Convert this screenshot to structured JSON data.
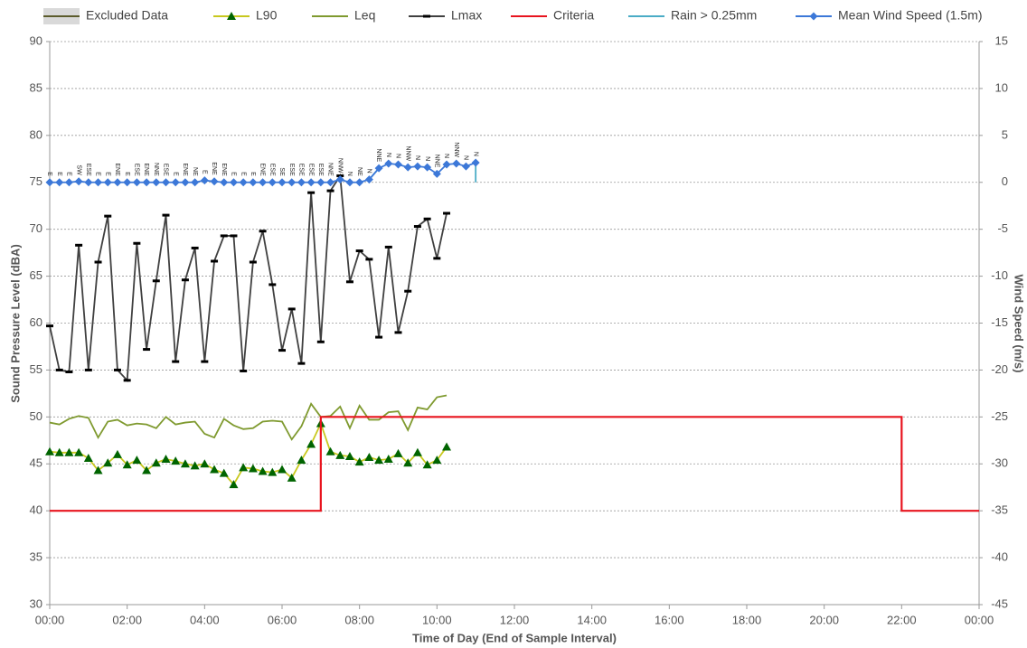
{
  "chart_data": {
    "type": "line",
    "y_title": "Sound Pressure Level (dBA)",
    "y2_title": "Wind Speed (m/s)",
    "x_title": "Time of Day (End of Sample Interval)",
    "xlim": [
      0,
      24
    ],
    "xticks": [
      {
        "value": 0,
        "label": "00:00"
      },
      {
        "value": 2,
        "label": "02:00"
      },
      {
        "value": 4,
        "label": "04:00"
      },
      {
        "value": 6,
        "label": "06:00"
      },
      {
        "value": 8,
        "label": "08:00"
      },
      {
        "value": 10,
        "label": "10:00"
      },
      {
        "value": 12,
        "label": "12:00"
      },
      {
        "value": 14,
        "label": "14:00"
      },
      {
        "value": 16,
        "label": "16:00"
      },
      {
        "value": 18,
        "label": "18:00"
      },
      {
        "value": 20,
        "label": "20:00"
      },
      {
        "value": 22,
        "label": "22:00"
      },
      {
        "value": 24,
        "label": "00:00"
      }
    ],
    "ylim": [
      30,
      90
    ],
    "yticks": [
      30,
      35,
      40,
      45,
      50,
      55,
      60,
      65,
      70,
      75,
      80,
      85,
      90
    ],
    "y2lim": [
      -45,
      15
    ],
    "y2ticks": [
      -45,
      -40,
      -35,
      -30,
      -25,
      -20,
      -15,
      -10,
      -5,
      0,
      5,
      10,
      15
    ],
    "grid": true,
    "series": [
      {
        "name": "Excluded Data",
        "color": "#5b5b2b",
        "marker": "box",
        "x": [],
        "values": []
      },
      {
        "name": "L90",
        "color": "#c8c81e",
        "marker": "triangle",
        "marker_color": "#006400",
        "x": [
          0,
          0.25,
          0.5,
          0.75,
          1,
          1.25,
          1.5,
          1.75,
          2,
          2.25,
          2.5,
          2.75,
          3,
          3.25,
          3.5,
          3.75,
          4,
          4.25,
          4.5,
          4.75,
          5,
          5.25,
          5.5,
          5.75,
          6,
          6.25,
          6.5,
          6.75,
          7,
          7.25,
          7.5,
          7.75,
          8,
          8.25,
          8.5,
          8.75,
          9,
          9.25,
          9.5,
          9.75,
          10,
          10.25
        ],
        "values": [
          46.3,
          46.2,
          46.2,
          46.2,
          45.6,
          44.3,
          45.1,
          46.0,
          44.9,
          45.4,
          44.3,
          45.1,
          45.5,
          45.3,
          45.0,
          44.8,
          45.0,
          44.4,
          44.0,
          42.8,
          44.6,
          44.5,
          44.2,
          44.1,
          44.4,
          43.5,
          45.4,
          47.1,
          49.3,
          46.3,
          45.9,
          45.8,
          45.2,
          45.7,
          45.4,
          45.5,
          46.1,
          45.1,
          46.2,
          44.9,
          45.4,
          46.8
        ]
      },
      {
        "name": "Leq",
        "color": "#7f9a2f",
        "marker": "none",
        "x": [
          0,
          0.25,
          0.5,
          0.75,
          1,
          1.25,
          1.5,
          1.75,
          2,
          2.25,
          2.5,
          2.75,
          3,
          3.25,
          3.5,
          3.75,
          4,
          4.25,
          4.5,
          4.75,
          5,
          5.25,
          5.5,
          5.75,
          6,
          6.25,
          6.5,
          6.75,
          7,
          7.25,
          7.5,
          7.75,
          8,
          8.25,
          8.5,
          8.75,
          9,
          9.25,
          9.5,
          9.75,
          10,
          10.25
        ],
        "values": [
          49.4,
          49.2,
          49.8,
          50.1,
          49.9,
          47.8,
          49.5,
          49.7,
          49.1,
          49.3,
          49.2,
          48.8,
          50.0,
          49.2,
          49.4,
          49.5,
          48.2,
          47.8,
          49.8,
          49.1,
          48.7,
          48.8,
          49.5,
          49.6,
          49.5,
          47.6,
          49.0,
          51.4,
          50.0,
          50.1,
          51.1,
          48.8,
          51.2,
          49.7,
          49.7,
          50.5,
          50.6,
          48.6,
          51.0,
          50.8,
          52.1,
          52.3
        ]
      },
      {
        "name": "Lmax",
        "color": "#404040",
        "marker": "dash",
        "marker_color": "#000000",
        "x": [
          0,
          0.25,
          0.5,
          0.75,
          1,
          1.25,
          1.5,
          1.75,
          2,
          2.25,
          2.5,
          2.75,
          3,
          3.25,
          3.5,
          3.75,
          4,
          4.25,
          4.5,
          4.75,
          5,
          5.25,
          5.5,
          5.75,
          6,
          6.25,
          6.5,
          6.75,
          7,
          7.25,
          7.5,
          7.75,
          8,
          8.25,
          8.5,
          8.75,
          9,
          9.25,
          9.5,
          9.75,
          10,
          10.25
        ],
        "values": [
          59.7,
          55.0,
          54.8,
          68.3,
          55.0,
          66.5,
          71.4,
          55.0,
          53.9,
          68.5,
          57.2,
          64.5,
          71.5,
          55.9,
          64.6,
          68.0,
          55.9,
          66.6,
          69.3,
          69.3,
          54.9,
          66.5,
          69.8,
          64.1,
          57.1,
          61.5,
          55.7,
          73.9,
          58.0,
          74.1,
          75.7,
          64.4,
          67.7,
          66.8,
          58.5,
          68.1,
          59.0,
          63.4,
          70.3,
          71.1,
          66.9,
          71.7
        ]
      },
      {
        "name": "Criteria",
        "color": "#e8141e",
        "marker": "none",
        "x": [
          0,
          7,
          7,
          22,
          22,
          24
        ],
        "values": [
          40,
          40,
          50,
          50,
          40,
          40
        ]
      },
      {
        "name": "Rain > 0.25mm",
        "color": "#4bacc6",
        "marker": "none",
        "axis": "y2",
        "x": [
          8.25,
          8.5,
          8.75,
          11,
          11
        ],
        "values": [
          0.3,
          1.5,
          null,
          2.1,
          0
        ]
      },
      {
        "name": "Mean Wind Speed (1.5m)",
        "color": "#3c78d8",
        "marker": "diamond",
        "axis": "y2",
        "x": [
          0,
          0.25,
          0.5,
          0.75,
          1,
          1.25,
          1.5,
          1.75,
          2,
          2.25,
          2.5,
          2.75,
          3,
          3.25,
          3.5,
          3.75,
          4,
          4.25,
          4.5,
          4.75,
          5,
          5.25,
          5.5,
          5.75,
          6,
          6.25,
          6.5,
          6.75,
          7,
          7.25,
          7.5,
          7.75,
          8,
          8.25,
          8.5,
          8.75,
          9,
          9.25,
          9.5,
          9.75,
          10,
          10.25,
          10.5,
          10.75,
          11
        ],
        "values": [
          0,
          0,
          0,
          0.1,
          0,
          0,
          0,
          0,
          0,
          0,
          0,
          0,
          0,
          0,
          0,
          0,
          0.2,
          0.1,
          0,
          0,
          0,
          0,
          0,
          0,
          0,
          0,
          0,
          0,
          0,
          0,
          0.3,
          0,
          0,
          0.3,
          1.5,
          2.0,
          1.9,
          1.6,
          1.7,
          1.6,
          0.9,
          1.9,
          2.0,
          1.7,
          2.1
        ],
        "direction_labels": [
          "E",
          "E",
          "E",
          "SW",
          "ESE",
          "E",
          "E",
          "ENE",
          "E",
          "ESE",
          "ENE",
          "NNE",
          "ESE",
          "E",
          "ENE",
          "NE",
          "E",
          "ENE",
          "ENE",
          "E",
          "E",
          "E",
          "ENE",
          "ESE",
          "SE",
          "ESE",
          "ESE",
          "ESE",
          "ESE",
          "NNE",
          "NNW",
          "N",
          "NE",
          "N",
          "NNE",
          "N",
          "N",
          "NNW",
          "N",
          "N",
          "NNE",
          "N",
          "NNW",
          "N",
          "N"
        ]
      }
    ]
  }
}
